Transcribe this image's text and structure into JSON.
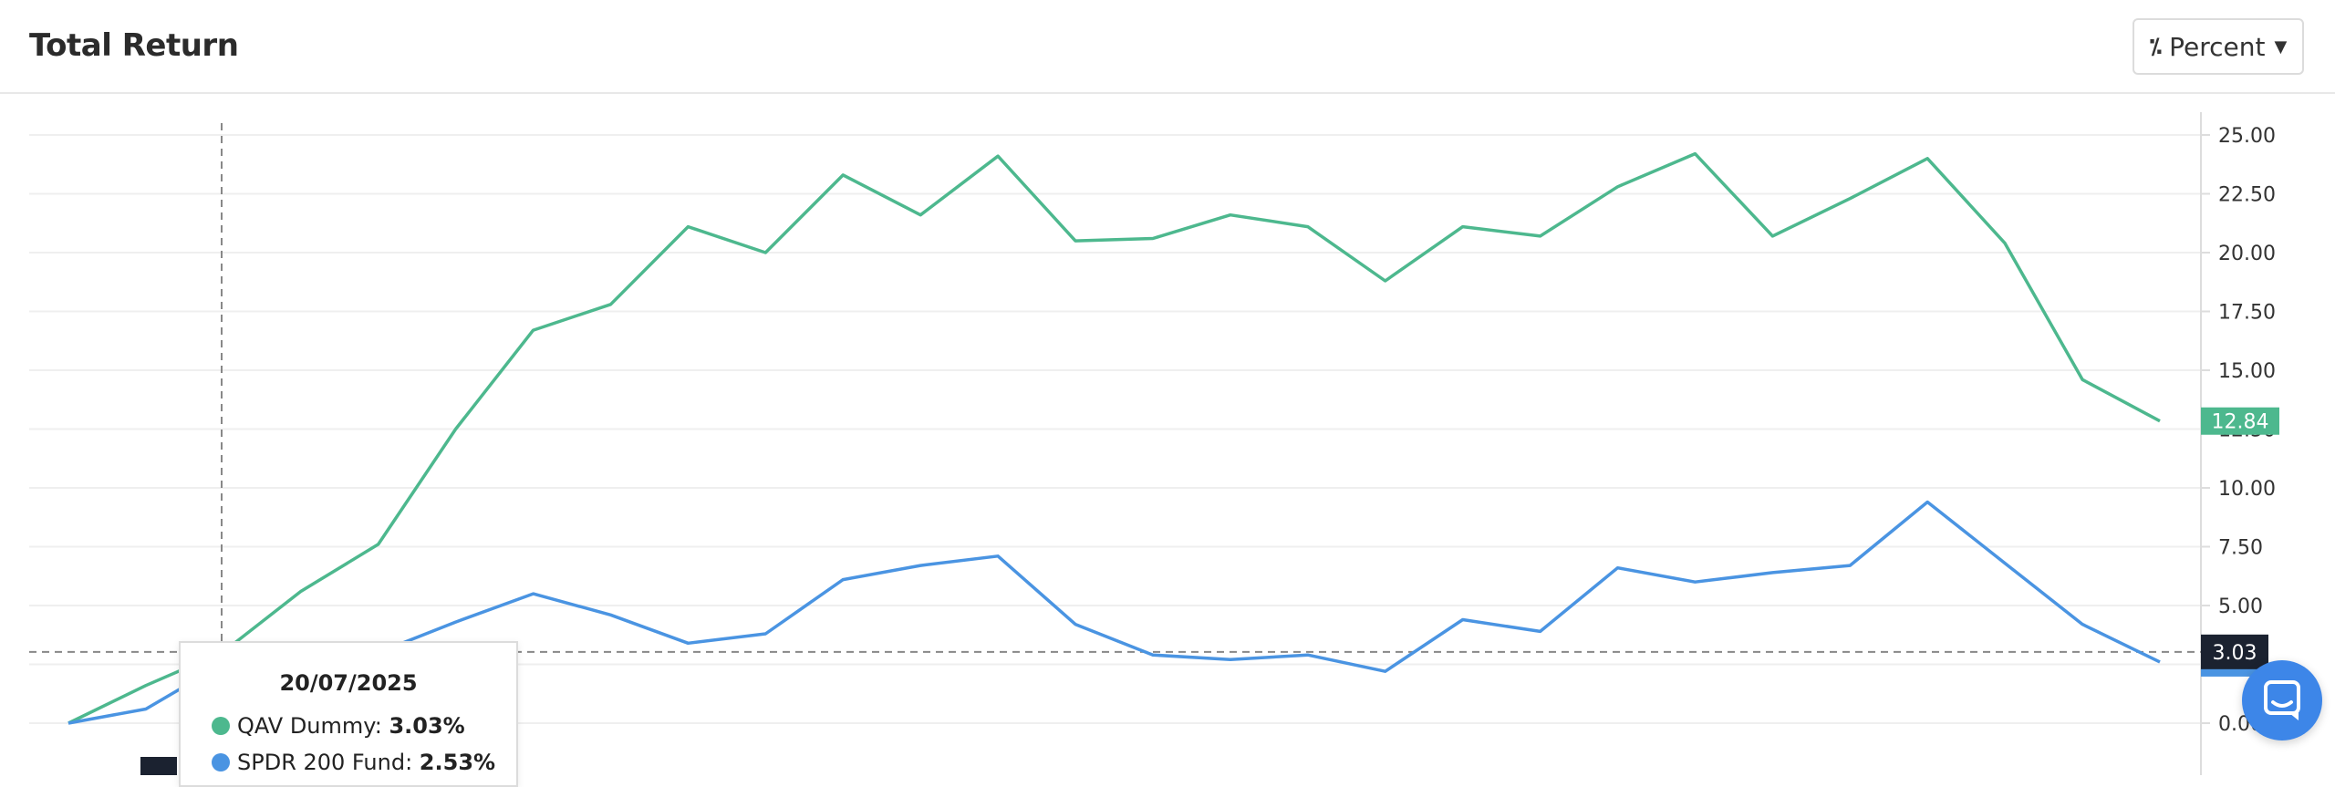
{
  "header": {
    "title": "Total Return",
    "unit_button": {
      "label": "Percent",
      "icon": "percent-icon",
      "caret": "chevron-down-icon"
    }
  },
  "colors": {
    "qav": "#4db88e",
    "spdr": "#4a94e2",
    "grid": "#efefef",
    "dark_label": "#1b2230",
    "chat": "#3d86e8"
  },
  "tooltip": {
    "date": "20/07/2025",
    "rows": [
      {
        "name": "QAV Dummy",
        "value": "3.03%"
      },
      {
        "name": "SPDR 200 Fund",
        "value": "2.53%"
      }
    ]
  },
  "chart_data": {
    "type": "line",
    "y_axis": {
      "side": "right",
      "min": 0,
      "max": 25,
      "ticks": [
        "25.00",
        "22.50",
        "20.00",
        "17.50",
        "15.00",
        "12.50",
        "10.00",
        "7.50",
        "5.00",
        "2.50",
        "0.00"
      ]
    },
    "grid": true,
    "crosshair": {
      "y": 3.03,
      "label": "3.03"
    },
    "last_value_label": "12.84",
    "series": [
      {
        "name": "QAV Dummy",
        "values": [
          0.0,
          1.6,
          3.03,
          5.6,
          7.6,
          12.5,
          16.7,
          17.8,
          21.1,
          20.0,
          23.3,
          21.6,
          24.1,
          20.5,
          20.6,
          21.6,
          21.1,
          18.8,
          21.1,
          20.7,
          22.8,
          24.2,
          20.7,
          22.3,
          24.0,
          20.4,
          14.6,
          12.84
        ]
      },
      {
        "name": "SPDR 200 Fund",
        "values": [
          0.0,
          0.6,
          2.53,
          3.0,
          3.0,
          4.3,
          5.5,
          4.6,
          3.4,
          3.8,
          6.1,
          6.7,
          7.1,
          4.2,
          2.9,
          2.7,
          2.9,
          2.2,
          4.4,
          3.9,
          6.6,
          6.0,
          6.4,
          6.7,
          9.4,
          6.8,
          4.2,
          2.6
        ]
      }
    ]
  },
  "chat_button": {
    "icon": "chat-icon"
  }
}
